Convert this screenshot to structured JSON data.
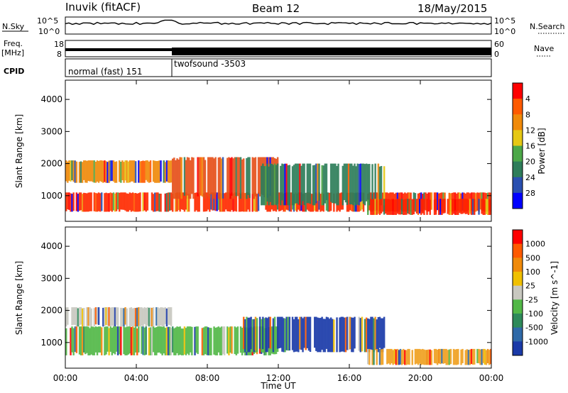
{
  "header": {
    "station": "Inuvik (fitACF)",
    "beam": "Beam 12",
    "date": "18/May/2015"
  },
  "top_panels": {
    "nsky_label": "N.Sky",
    "nsky_ticks": [
      "10^5",
      "10^0"
    ],
    "nsearch_label": "N.Search",
    "nsearch_ticks": [
      "10^5",
      "10^0"
    ],
    "freq_label": "Freq.",
    "freq_unit": "[MHz]",
    "freq_ticks": [
      "18",
      "8"
    ],
    "nave_label": "Nave",
    "nave_ticks": [
      "60",
      "0"
    ],
    "cpid_label": "CPID",
    "cpid_modes": [
      {
        "name": "normal (fast) 151",
        "start_hour": 0,
        "end_hour": 6
      },
      {
        "name": "twofsound -3503",
        "start_hour": 6,
        "end_hour": 24
      }
    ]
  },
  "chart_data": [
    {
      "type": "heatmap",
      "panel": "power",
      "xlabel": "",
      "ylabel": "Slant Range [km]",
      "ylim": [
        200,
        4600
      ],
      "y_ticks": [
        "1000",
        "2000",
        "3000",
        "4000"
      ],
      "xlim": [
        0,
        24
      ],
      "colorbar": {
        "label": "Power [dB]",
        "levels": [
          "4",
          "8",
          "12",
          "16",
          "20",
          "24",
          "28"
        ],
        "colors": [
          "#0000ff",
          "#2a4fb0",
          "#2e7d5a",
          "#4ca848",
          "#e6c814",
          "#f08a0a",
          "#ff5a00",
          "#ff0000"
        ]
      },
      "bands": [
        {
          "name": "main",
          "start": 0,
          "end": 24,
          "range": [
            500,
            1100
          ],
          "color": "#ff2a00"
        },
        {
          "name": "upper",
          "start": 0,
          "end": 6,
          "range": [
            1400,
            2100
          ],
          "color": "#f08a0a"
        },
        {
          "name": "day",
          "start": 6,
          "end": 12,
          "range": [
            900,
            2200
          ],
          "color": "#e6501a"
        },
        {
          "name": "noon",
          "start": 11,
          "end": 18,
          "range": [
            700,
            2000
          ],
          "color": "#2e7d5a"
        },
        {
          "name": "evening",
          "start": 17,
          "end": 24,
          "range": [
            400,
            900
          ],
          "color": "#ff2200"
        }
      ]
    },
    {
      "type": "heatmap",
      "panel": "velocity",
      "xlabel": "Time UT",
      "ylabel": "Slant Range [km]",
      "ylim": [
        200,
        4600
      ],
      "y_ticks": [
        "1000",
        "2000",
        "3000",
        "4000"
      ],
      "xlim": [
        0,
        24
      ],
      "x_ticks": [
        "00:00",
        "04:00",
        "08:00",
        "12:00",
        "16:00",
        "20:00",
        "00:00"
      ],
      "colorbar": {
        "label": "Velocity [m s^-1]",
        "levels": [
          "1000",
          "500",
          "100",
          "25",
          "-25",
          "-100",
          "-500",
          "-1000"
        ],
        "colors": [
          "#1a3aa8",
          "#2f6aa8",
          "#2e8a5a",
          "#52b847",
          "#c8c8c0",
          "#f0c000",
          "#f08a0a",
          "#ff5a00",
          "#ff0000"
        ]
      },
      "bands": [
        {
          "name": "ground",
          "start": 0,
          "end": 6,
          "range": [
            1500,
            2100
          ],
          "color": "#c8c8c0"
        },
        {
          "name": "green",
          "start": 0,
          "end": 12,
          "range": [
            600,
            1500
          ],
          "color": "#52b847"
        },
        {
          "name": "blue",
          "start": 10,
          "end": 18,
          "range": [
            700,
            1800
          ],
          "color": "#1a3aa8"
        },
        {
          "name": "orange",
          "start": 17,
          "end": 24,
          "range": [
            300,
            800
          ],
          "color": "#f0a020"
        }
      ]
    }
  ]
}
